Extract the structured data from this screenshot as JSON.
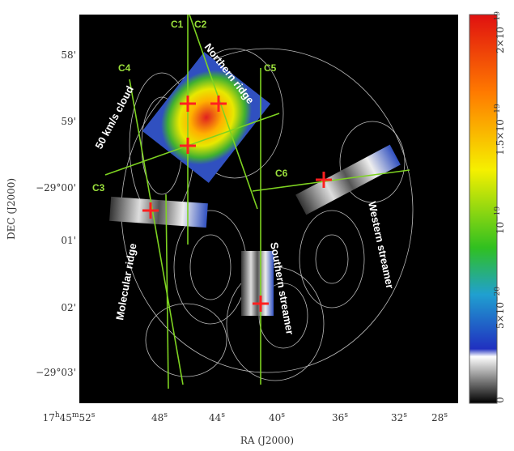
{
  "axes": {
    "x_title": "RA (J2000)",
    "y_title": "DEC (J2000)",
    "x_ticks": [
      {
        "n": "17",
        "h": "h",
        "m1": "45",
        "m": "m",
        "s1": "52",
        "s": "s"
      },
      {
        "n": "48",
        "u": "s"
      },
      {
        "n": "44",
        "u": "s"
      },
      {
        "n": "40",
        "u": "s"
      },
      {
        "n": "36",
        "u": "s"
      },
      {
        "n": "32",
        "u": "s"
      },
      {
        "n": "28",
        "u": "s"
      }
    ],
    "y_ticks": [
      "58'",
      "59'",
      "−29°00'",
      "01'",
      "02'",
      "−29°03'"
    ]
  },
  "colorbar": {
    "ticks": [
      {
        "m": "2×10",
        "e": "−19"
      },
      {
        "m": "1.5×10",
        "e": "−19"
      },
      {
        "m": "10",
        "e": "−19"
      },
      {
        "m": "5×10",
        "e": "−20"
      },
      {
        "m": "0",
        "e": ""
      }
    ]
  },
  "annotations": {
    "cuts": [
      "C1",
      "C2",
      "C3",
      "C4",
      "C5",
      "C6"
    ],
    "regions": [
      "Northern ridge",
      "50 km/s cloud",
      "Molecular ridge",
      "Southern streamer",
      "Western streamer"
    ]
  }
}
